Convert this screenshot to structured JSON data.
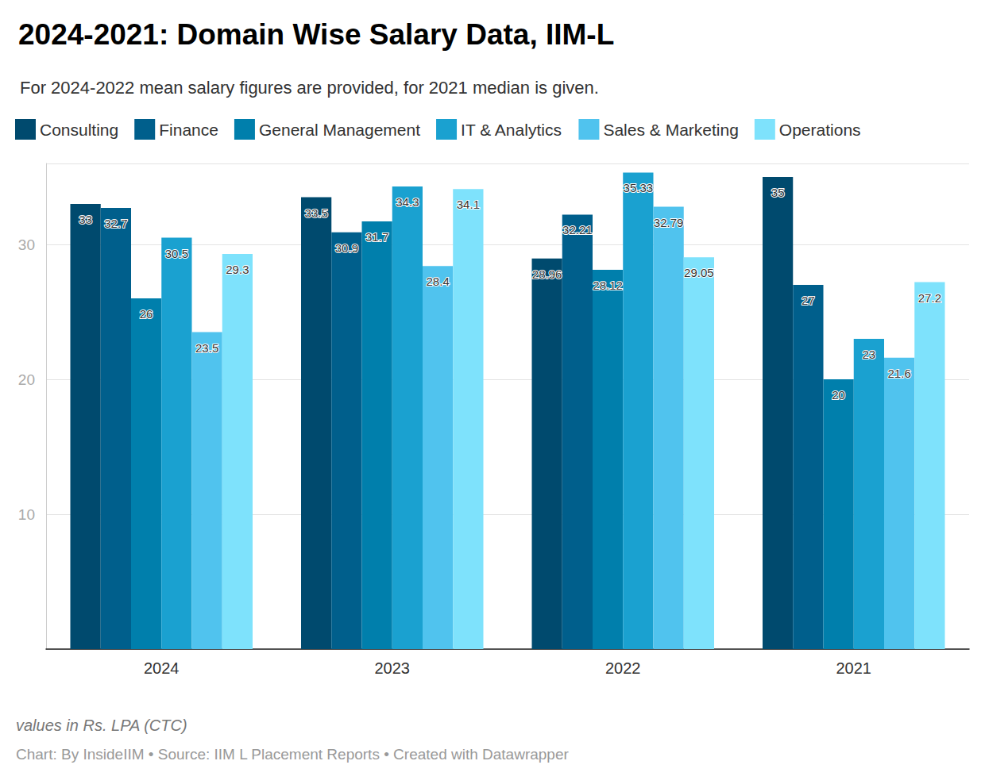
{
  "chart_data": {
    "type": "bar",
    "title": "2024-2021: Domain Wise Salary Data, IIM-L",
    "subtitle": "For 2024-2022 mean salary figures are provided, for 2021 median is given.",
    "annotations": [
      "values in Rs. LPA (CTC)",
      "Chart: By InsideIIM • Source: IIM L Placement Reports • Created with Datawrapper"
    ],
    "categories": [
      "2024",
      "2023",
      "2022",
      "2021"
    ],
    "series": [
      {
        "name": "Consulting",
        "color": "#004a6e",
        "values": [
          33,
          33.5,
          28.96,
          35
        ]
      },
      {
        "name": "Finance",
        "color": "#005f8c",
        "values": [
          32.7,
          30.9,
          32.21,
          27
        ]
      },
      {
        "name": "General Management",
        "color": "#007fac",
        "values": [
          26,
          31.7,
          28.12,
          20
        ]
      },
      {
        "name": "IT & Analytics",
        "color": "#1aa1d0",
        "values": [
          30.5,
          34.3,
          35.33,
          23
        ]
      },
      {
        "name": "Sales & Marketing",
        "color": "#50c3ee",
        "values": [
          23.5,
          28.4,
          32.79,
          21.6
        ]
      },
      {
        "name": "Operations",
        "color": "#7ee2fc",
        "values": [
          29.3,
          34.1,
          29.05,
          27.2
        ]
      }
    ],
    "ylim": [
      0,
      36
    ],
    "yticks": [
      10,
      20,
      30
    ],
    "grid": true,
    "legend": "top-left",
    "data_labels": true
  }
}
